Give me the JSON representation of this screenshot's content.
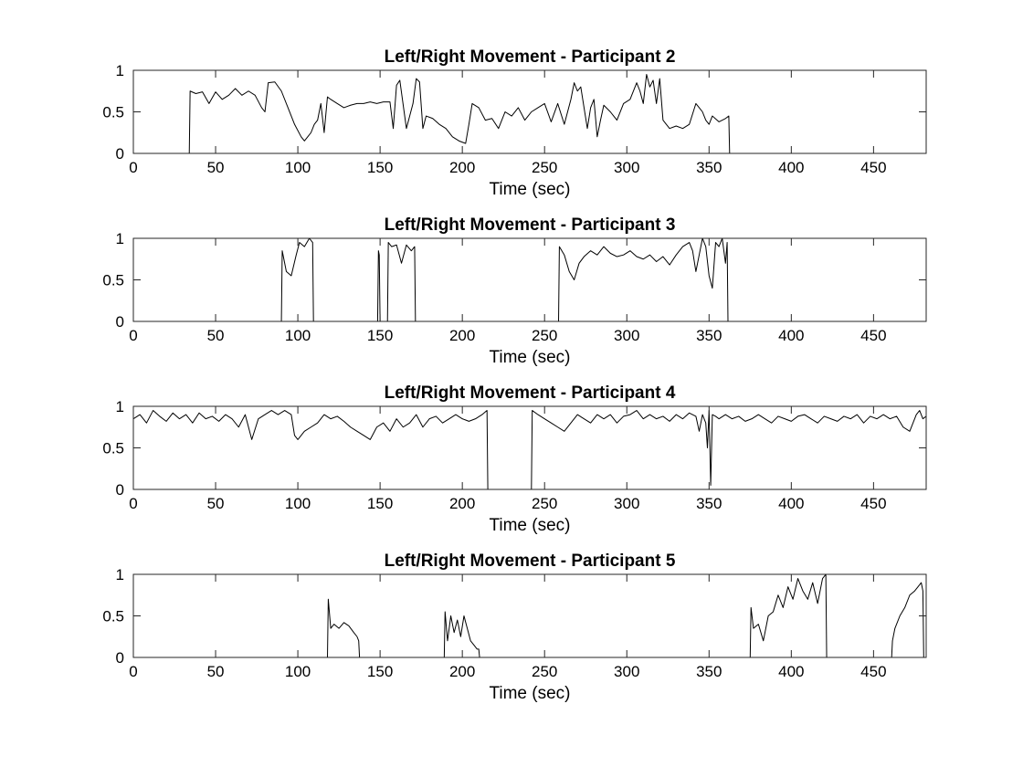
{
  "chart_data": [
    {
      "type": "line",
      "title": "Left/Right Movement - Participant 2",
      "xlabel": "Time (sec)",
      "ylabel": "",
      "xlim": [
        0,
        482
      ],
      "ylim": [
        0,
        1
      ],
      "xticks": [
        0,
        50,
        100,
        150,
        200,
        250,
        300,
        350,
        400,
        450
      ],
      "yticks": [
        0,
        0.5,
        1
      ],
      "grid": false,
      "series": [
        {
          "color": "#000000",
          "x": [
            0,
            34,
            34.5,
            38,
            42,
            46,
            50,
            54,
            58,
            62,
            66,
            70,
            74,
            78,
            80,
            82,
            86,
            90,
            94,
            98,
            102,
            104,
            106,
            108,
            110,
            112,
            114,
            116,
            118,
            120,
            124,
            128,
            132,
            136,
            140,
            144,
            148,
            152,
            156,
            158,
            160,
            162,
            166,
            170,
            172,
            174,
            176,
            178,
            182,
            186,
            190,
            194,
            198,
            202,
            204,
            206,
            210,
            214,
            218,
            222,
            226,
            230,
            234,
            238,
            242,
            246,
            250,
            254,
            258,
            262,
            266,
            268,
            270,
            272,
            276,
            278,
            280,
            282,
            284,
            286,
            290,
            294,
            298,
            302,
            306,
            308,
            310,
            312,
            314,
            316,
            318,
            320,
            322,
            324,
            326,
            330,
            334,
            338,
            342,
            344,
            346,
            348,
            350,
            352,
            356,
            360,
            362,
            362.5,
            482
          ],
          "y": [
            0,
            0,
            0.75,
            0.72,
            0.74,
            0.6,
            0.74,
            0.65,
            0.7,
            0.78,
            0.7,
            0.75,
            0.7,
            0.55,
            0.5,
            0.85,
            0.86,
            0.75,
            0.55,
            0.35,
            0.2,
            0.15,
            0.2,
            0.25,
            0.35,
            0.4,
            0.6,
            0.25,
            0.68,
            0.65,
            0.6,
            0.55,
            0.58,
            0.6,
            0.6,
            0.62,
            0.6,
            0.62,
            0.62,
            0.3,
            0.82,
            0.88,
            0.3,
            0.6,
            0.9,
            0.86,
            0.3,
            0.45,
            0.42,
            0.35,
            0.3,
            0.2,
            0.15,
            0.12,
            0.35,
            0.6,
            0.55,
            0.4,
            0.42,
            0.3,
            0.5,
            0.45,
            0.55,
            0.4,
            0.5,
            0.55,
            0.6,
            0.38,
            0.6,
            0.35,
            0.65,
            0.85,
            0.75,
            0.8,
            0.3,
            0.55,
            0.65,
            0.2,
            0.4,
            0.58,
            0.5,
            0.4,
            0.6,
            0.65,
            0.85,
            0.75,
            0.6,
            0.95,
            0.8,
            0.88,
            0.6,
            0.9,
            0.4,
            0.35,
            0.3,
            0.33,
            0.3,
            0.35,
            0.6,
            0.55,
            0.5,
            0.4,
            0.35,
            0.45,
            0.38,
            0.42,
            0.45,
            0,
            0
          ]
        }
      ]
    },
    {
      "type": "line",
      "title": "Left/Right Movement - Participant 3",
      "xlabel": "Time (sec)",
      "ylabel": "",
      "xlim": [
        0,
        482
      ],
      "ylim": [
        0,
        1
      ],
      "xticks": [
        0,
        50,
        100,
        150,
        200,
        250,
        300,
        350,
        400,
        450
      ],
      "yticks": [
        0,
        0.5,
        1
      ],
      "grid": false,
      "series": [
        {
          "color": "#000000",
          "x": [
            0,
            90,
            90.5,
            93,
            96,
            99,
            101,
            104,
            107,
            109,
            109.5,
            148.5,
            149,
            149.5,
            150,
            154.5,
            155,
            157,
            160,
            163,
            166,
            169,
            171,
            171.5,
            258.5,
            259,
            262,
            265,
            268,
            271,
            274,
            278,
            282,
            286,
            290,
            294,
            298,
            302,
            306,
            310,
            314,
            318,
            322,
            326,
            330,
            334,
            338,
            340,
            342,
            344,
            346,
            348,
            350,
            352,
            354,
            356,
            358,
            360,
            361,
            361.5,
            482
          ],
          "y": [
            0,
            0,
            0.85,
            0.6,
            0.55,
            0.8,
            0.95,
            0.9,
            1,
            0.95,
            0,
            0,
            0.85,
            0.8,
            0,
            0,
            0.95,
            0.9,
            0.92,
            0.7,
            0.92,
            0.85,
            0.9,
            0,
            0,
            0.9,
            0.8,
            0.6,
            0.5,
            0.7,
            0.78,
            0.85,
            0.8,
            0.9,
            0.82,
            0.78,
            0.8,
            0.85,
            0.78,
            0.75,
            0.8,
            0.72,
            0.78,
            0.68,
            0.8,
            0.9,
            0.95,
            0.85,
            0.6,
            0.8,
            1,
            0.9,
            0.55,
            0.4,
            0.95,
            0.9,
            1,
            0.7,
            0.95,
            0,
            0
          ]
        }
      ]
    },
    {
      "type": "line",
      "title": "Left/Right Movement - Participant 4",
      "xlabel": "Time (sec)",
      "ylabel": "",
      "xlim": [
        0,
        482
      ],
      "ylim": [
        0,
        1
      ],
      "xticks": [
        0,
        50,
        100,
        150,
        200,
        250,
        300,
        350,
        400,
        450
      ],
      "yticks": [
        0,
        0.5,
        1
      ],
      "grid": false,
      "series": [
        {
          "color": "#000000",
          "x": [
            0,
            4,
            8,
            12,
            16,
            20,
            24,
            28,
            32,
            36,
            40,
            44,
            48,
            52,
            56,
            60,
            64,
            68,
            72,
            76,
            80,
            84,
            88,
            92,
            96,
            98,
            100,
            104,
            108,
            112,
            116,
            120,
            124,
            128,
            132,
            136,
            140,
            144,
            148,
            152,
            156,
            160,
            164,
            168,
            172,
            176,
            180,
            184,
            188,
            192,
            196,
            200,
            204,
            208,
            212,
            215,
            215.5,
            242,
            242.5,
            246,
            250,
            254,
            258,
            262,
            266,
            270,
            274,
            278,
            282,
            286,
            290,
            294,
            298,
            302,
            306,
            310,
            314,
            318,
            322,
            326,
            330,
            334,
            338,
            342,
            344,
            346,
            348,
            349,
            350,
            351,
            352,
            354,
            356,
            360,
            364,
            368,
            372,
            376,
            380,
            384,
            388,
            392,
            396,
            400,
            404,
            408,
            412,
            416,
            420,
            424,
            428,
            432,
            436,
            440,
            444,
            448,
            452,
            456,
            460,
            464,
            468,
            472,
            476,
            478,
            480,
            482
          ],
          "y": [
            0.85,
            0.9,
            0.8,
            0.95,
            0.88,
            0.82,
            0.92,
            0.85,
            0.9,
            0.8,
            0.92,
            0.85,
            0.88,
            0.82,
            0.9,
            0.85,
            0.75,
            0.9,
            0.6,
            0.85,
            0.9,
            0.95,
            0.9,
            0.95,
            0.9,
            0.65,
            0.6,
            0.7,
            0.75,
            0.8,
            0.9,
            0.85,
            0.88,
            0.82,
            0.75,
            0.7,
            0.65,
            0.6,
            0.75,
            0.8,
            0.7,
            0.85,
            0.75,
            0.8,
            0.9,
            0.75,
            0.85,
            0.88,
            0.8,
            0.85,
            0.9,
            0.85,
            0.82,
            0.85,
            0.9,
            0.95,
            0,
            0,
            0.95,
            0.9,
            0.85,
            0.8,
            0.75,
            0.7,
            0.8,
            0.9,
            0.85,
            0.8,
            0.9,
            0.85,
            0.9,
            0.8,
            0.88,
            0.9,
            0.95,
            0.85,
            0.9,
            0.85,
            0.88,
            0.82,
            0.9,
            0.85,
            0.92,
            0.88,
            0.7,
            0.9,
            0.8,
            0.5,
            0.95,
            0.05,
            0.9,
            0.88,
            0.85,
            0.9,
            0.85,
            0.88,
            0.82,
            0.85,
            0.9,
            0.85,
            0.8,
            0.88,
            0.85,
            0.82,
            0.88,
            0.9,
            0.85,
            0.8,
            0.88,
            0.85,
            0.82,
            0.88,
            0.85,
            0.9,
            0.8,
            0.88,
            0.85,
            0.9,
            0.85,
            0.88,
            0.75,
            0.7,
            0.9,
            0.95,
            0.85,
            0.88
          ]
        }
      ]
    },
    {
      "type": "line",
      "title": "Left/Right Movement - Participant 5",
      "xlabel": "Time (sec)",
      "ylabel": "",
      "xlim": [
        0,
        482
      ],
      "ylim": [
        0,
        1
      ],
      "xticks": [
        0,
        50,
        100,
        150,
        200,
        250,
        300,
        350,
        400,
        450
      ],
      "yticks": [
        0,
        0.5,
        1
      ],
      "grid": false,
      "series": [
        {
          "color": "#000000",
          "x": [
            0,
            118,
            118.5,
            120,
            122,
            125,
            128,
            131,
            134,
            136,
            137,
            137.5,
            189,
            189.5,
            191,
            193,
            195,
            197,
            199,
            201,
            203,
            205,
            207,
            209,
            210,
            210.5,
            375,
            375.5,
            377,
            380,
            383,
            386,
            389,
            392,
            395,
            398,
            401,
            404,
            407,
            410,
            413,
            416,
            419,
            421,
            421.5,
            461,
            461.5,
            463,
            466,
            469,
            472,
            475,
            477,
            479,
            480,
            480.5,
            482
          ],
          "y": [
            0,
            0,
            0.7,
            0.35,
            0.4,
            0.35,
            0.42,
            0.38,
            0.3,
            0.25,
            0.2,
            0,
            0,
            0.55,
            0.2,
            0.5,
            0.3,
            0.45,
            0.25,
            0.5,
            0.35,
            0.2,
            0.15,
            0.1,
            0.1,
            0,
            0,
            0.6,
            0.35,
            0.4,
            0.2,
            0.5,
            0.55,
            0.75,
            0.6,
            0.85,
            0.7,
            0.95,
            0.8,
            0.7,
            0.9,
            0.65,
            0.95,
            1,
            0,
            0,
            0.2,
            0.35,
            0.5,
            0.6,
            0.75,
            0.8,
            0.85,
            0.9,
            0.8,
            0,
            0
          ]
        }
      ]
    }
  ]
}
